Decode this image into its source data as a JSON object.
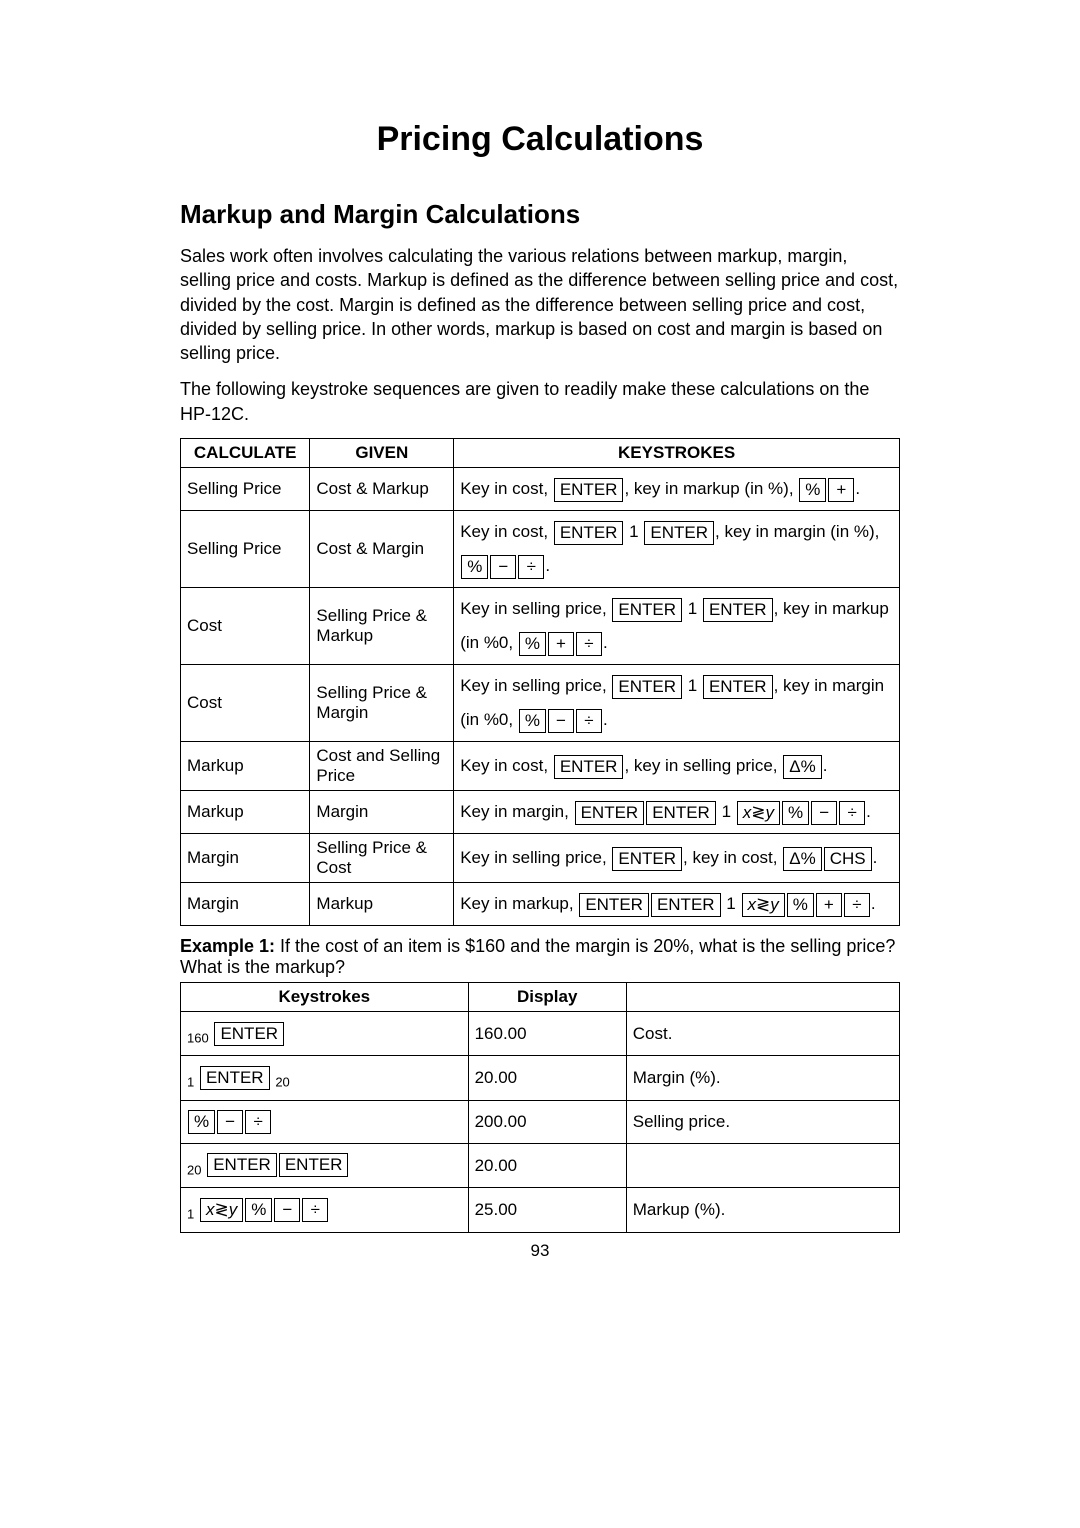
{
  "title": "Pricing Calculations",
  "section": "Markup and Margin Calculations",
  "para1": "Sales work often involves calculating the various relations between markup, margin, selling price and costs. Markup is defined as the difference between selling price and cost, divided by the cost. Margin is defined as the difference between selling price and cost, divided by selling price. In other words, markup is based on cost and margin is based on selling price.",
  "para2": "The following keystroke sequences are given to readily make these calculations on the HP-12C.",
  "table1": {
    "headers": [
      "CALCULATE",
      "GIVEN",
      "KEYSTROKES"
    ],
    "rows": [
      {
        "c": "Selling Price",
        "g": "Cost & Markup",
        "k_pre": "Key in cost, ",
        "k_mid": ", key in markup (in %), ",
        "keys1": [
          "ENTER"
        ],
        "keys2": [
          "%",
          "+"
        ],
        "tail": "."
      },
      {
        "c": "Selling Price",
        "g": "Cost & Margin",
        "k_pre": "Key in cost, ",
        "k_mid": ", key in margin (in %), ",
        "keys1": [
          "ENTER"
        ],
        "sub1": "1",
        "keys1b": [
          "ENTER"
        ],
        "keys2": [
          "%",
          "−",
          "÷"
        ],
        "tail": "."
      },
      {
        "c": "Cost",
        "g": "Selling Price & Markup",
        "k_pre": "Key in selling price, ",
        "k_mid": ", key in markup (in %0, ",
        "keys1": [
          "ENTER"
        ],
        "sub1": "1",
        "keys1b": [
          "ENTER"
        ],
        "keys2": [
          "%",
          "+",
          "÷"
        ],
        "tail": "."
      },
      {
        "c": "Cost",
        "g": "Selling Price & Margin",
        "k_pre": "Key in selling price, ",
        "k_mid": ", key in margin (in %0, ",
        "keys1": [
          "ENTER"
        ],
        "sub1": "1",
        "keys1b": [
          "ENTER"
        ],
        "keys2": [
          "%",
          "−",
          "÷"
        ],
        "tail": "."
      },
      {
        "c": "Markup",
        "g": "Cost and Selling Price",
        "k_pre": "Key in cost, ",
        "k_mid": ", key in selling price, ",
        "keys1": [
          "ENTER"
        ],
        "keys2": [
          "Δ%"
        ],
        "tail": "."
      },
      {
        "c": "Markup",
        "g": "Margin",
        "k_pre": "Key in margin, ",
        "keys1": [
          "ENTER",
          "ENTER"
        ],
        "sub1": "1",
        "keys1b": [
          "x≷y",
          "%"
        ],
        "keys2": [
          "−",
          "÷"
        ],
        "tail": "."
      },
      {
        "c": "Margin",
        "g": "Selling Price & Cost",
        "k_pre": "Key in selling price, ",
        "k_mid": ", key in cost, ",
        "keys1": [
          "ENTER"
        ],
        "keys2": [
          "Δ%",
          "CHS"
        ],
        "tail": "."
      },
      {
        "c": "Margin",
        "g": "Markup",
        "k_pre": "Key in markup, ",
        "keys1": [
          "ENTER",
          "ENTER"
        ],
        "sub1": "1",
        "keys1b": [
          "x≷y",
          "%"
        ],
        "keys2": [
          "+",
          "÷"
        ],
        "tail": "."
      }
    ]
  },
  "example1_label": "Example 1:",
  "example1_text": " If the cost of an item is $160 and the margin is 20%, what is the selling price? What is the markup?",
  "table2": {
    "headers": [
      "Keystrokes",
      "Display",
      ""
    ],
    "rows": [
      {
        "ks_pre": "160 ",
        "keys": [
          "ENTER"
        ],
        "ks_post": "",
        "d": "160.00",
        "desc": "Cost."
      },
      {
        "ks_pre": "1 ",
        "keys": [
          "ENTER"
        ],
        "ks_post": " 20",
        "d": "20.00",
        "desc": "Margin (%)."
      },
      {
        "ks_pre": "",
        "keys": [
          "%",
          "−",
          "÷"
        ],
        "ks_post": "",
        "d": "200.00",
        "desc": "Selling price."
      },
      {
        "ks_pre": "20 ",
        "keys": [
          "ENTER",
          "ENTER"
        ],
        "ks_post": "",
        "d": "20.00",
        "desc": ""
      },
      {
        "ks_pre": "1 ",
        "keys": [
          "x≷y",
          "%",
          "−",
          "÷"
        ],
        "ks_post": "",
        "d": "25.00",
        "desc": "Markup (%)."
      }
    ]
  },
  "page_number": "93"
}
